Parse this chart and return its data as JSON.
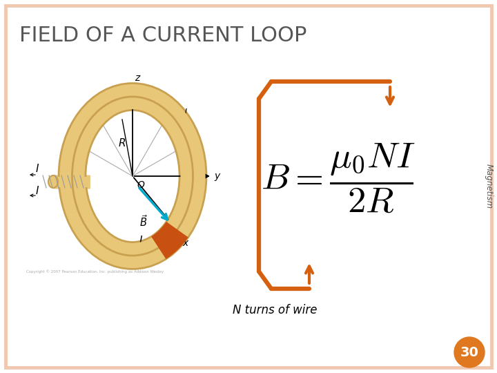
{
  "title": "FIELD OF A CURRENT LOOP",
  "title_fontsize": 22,
  "title_color": "#555555",
  "background_color": "#ffffff",
  "border_color": "#f0c8b0",
  "magnetism_text": "Magnetism",
  "side_text_color": "#555555",
  "formula_color": "#000000",
  "bracket_color": "#d46010",
  "page_number": "30",
  "page_number_bg": "#e07820",
  "page_number_color": "#ffffff",
  "n_turns_label": "N turns of wire",
  "loop_color": "#e8c878",
  "loop_edge_color": "#c8a050",
  "dl_color": "#c85010",
  "axis_color": "#888888",
  "B_arrow_color": "#00aacc",
  "I_arrow_color": "#888888"
}
